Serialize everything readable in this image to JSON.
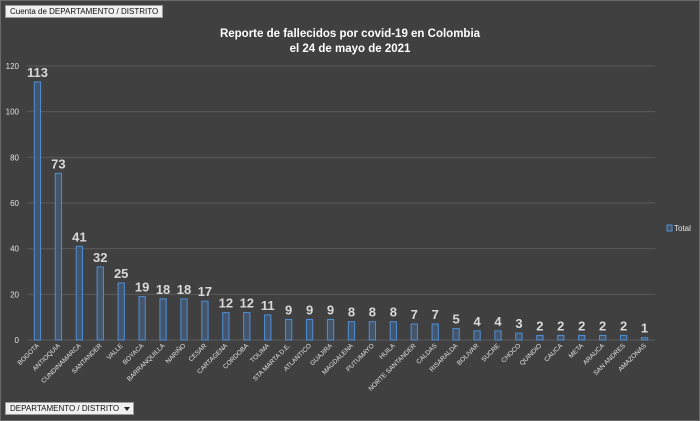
{
  "pivot": {
    "value_button": "Cuenta de DEPARTAMENTO  / DISTRITO",
    "axis_button": "DEPARTAMENTO  / DISTRITO"
  },
  "chart_data": {
    "type": "bar",
    "title": [
      "Reporte de fallecidos por covid-19 en Colombia",
      "el 24 de mayo de 2021"
    ],
    "categories": [
      "BOGOTA",
      "ANTIOQUIA",
      "CUNDINAMARCA",
      "SANTANDER",
      "VALLE",
      "BOYACA",
      "BARRANQUILLA",
      "NARIÑO",
      "CESAR",
      "CARTAGENA",
      "CORDOBA",
      "TOLIMA",
      "STA MARTA D.E.",
      "ATLANTICO",
      "GUAJIRA",
      "MAGDALENA",
      "PUTUMAYO",
      "HUILA",
      "NORTE SANTANDER",
      "CALDAS",
      "RISARALDA",
      "BOLIVAR",
      "SUCRE",
      "CHOCO",
      "QUINDIO",
      "CAUCA",
      "META",
      "ARAUCA",
      "SAN ANDRES",
      "AMAZONAS"
    ],
    "series": [
      {
        "name": "Total",
        "values": [
          113,
          73,
          41,
          32,
          25,
          19,
          18,
          18,
          17,
          12,
          12,
          11,
          9,
          9,
          9,
          8,
          8,
          8,
          7,
          7,
          5,
          4,
          4,
          3,
          2,
          2,
          2,
          2,
          2,
          1
        ]
      }
    ],
    "yticks": [
      0,
      20,
      40,
      60,
      80,
      100,
      120
    ],
    "ylim": [
      0,
      120
    ],
    "grid": true,
    "legend": "right",
    "colors": {
      "bar_fill": "#44546a",
      "bar_edge": "#4f8fd6",
      "background": "#404040"
    }
  }
}
